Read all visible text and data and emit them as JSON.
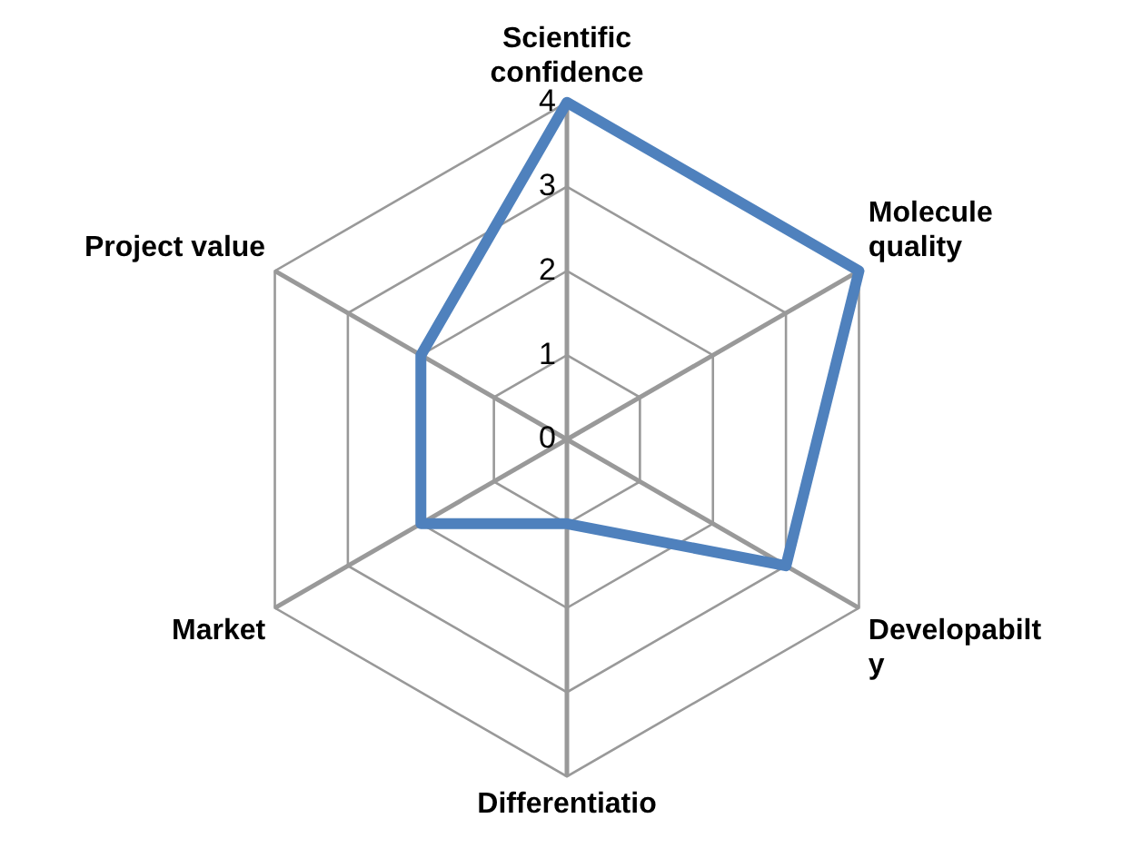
{
  "chart_data": {
    "type": "radar",
    "categories": [
      "Scientific\nconfidence",
      "Molecule\nquality",
      "Developabilt\ny",
      "Differentiatio",
      "Market",
      "Project value"
    ],
    "series": [
      {
        "color": "#4f81bd",
        "values": [
          4,
          4,
          3,
          1,
          2,
          2
        ]
      }
    ],
    "ylim": [
      0,
      4
    ],
    "yticks": [
      0,
      1,
      2,
      3,
      4
    ],
    "grid": true,
    "legend": false,
    "marker": "none",
    "line_style": "solid"
  }
}
